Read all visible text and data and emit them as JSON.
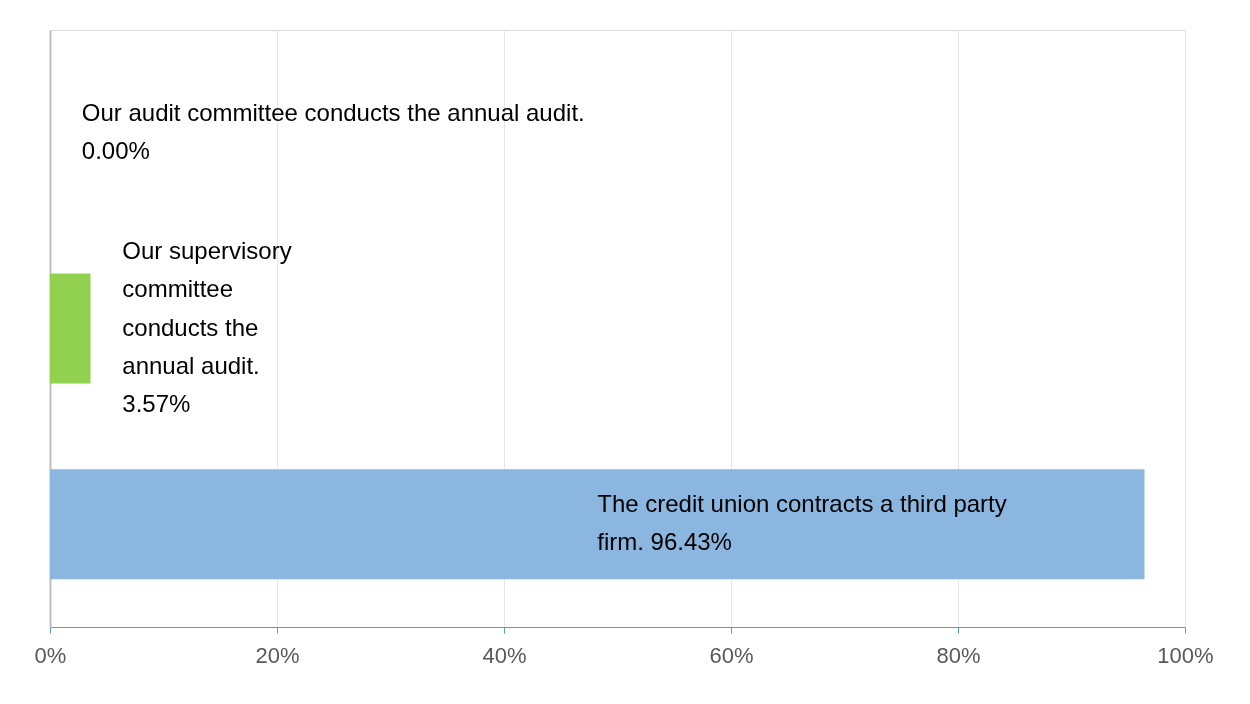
{
  "chart_data": {
    "type": "bar",
    "orientation": "horizontal",
    "categories": [
      "Our audit committee conducts the annual audit.",
      "Our supervisory committee conducts the annual audit.",
      "The credit union contracts a third party firm."
    ],
    "values": [
      0,
      3.57,
      96.43
    ],
    "colors": [
      "#ed7d31",
      "#92d050",
      "#8bb6e0"
    ],
    "value_labels": [
      "0.00%",
      "3.57%",
      "96.43%"
    ],
    "xlim": [
      0,
      100
    ],
    "xticks": [
      {
        "value": 0,
        "label": "0%"
      },
      {
        "value": 20,
        "label": "20%"
      },
      {
        "value": 40,
        "label": "40%"
      },
      {
        "value": 60,
        "label": "60%"
      },
      {
        "value": 80,
        "label": "80%"
      },
      {
        "value": 100,
        "label": "100%"
      }
    ],
    "grid": "x",
    "legend": false
  }
}
